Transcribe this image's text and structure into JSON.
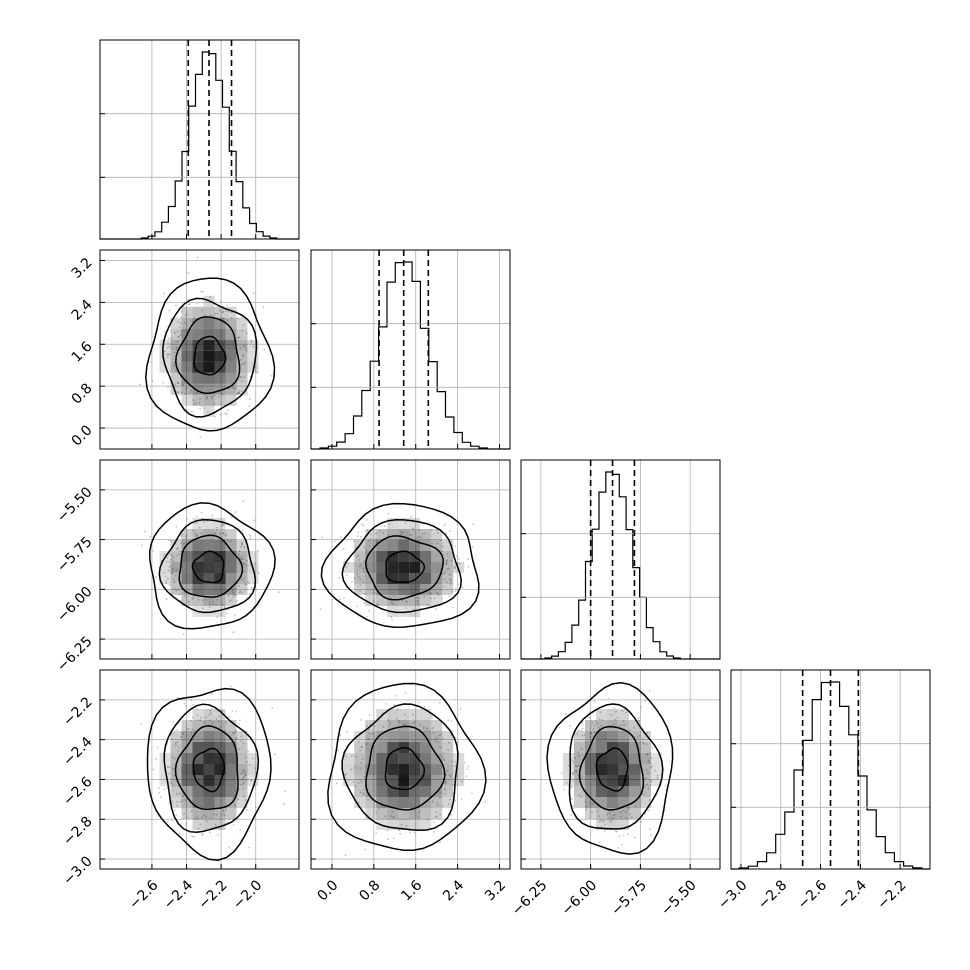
{
  "chart_data": {
    "type": "corner",
    "grid": true,
    "colors": {
      "contour": "#000000",
      "points": "#7f7f7f",
      "density": "#000000",
      "grid": "#b0b0b0"
    },
    "parameters": [
      {
        "id": "p1",
        "center": -2.27,
        "sigma": 0.115,
        "range": [
          -2.9,
          -1.75
        ],
        "ticks": [
          -2.6,
          -2.4,
          -2.2,
          -2.0
        ],
        "tick_labels": [
          "−2.6",
          "−2.4",
          "−2.2",
          "−2.0"
        ],
        "quantiles": [
          -2.39,
          -2.27,
          -2.14
        ]
      },
      {
        "id": "p2",
        "center": 1.37,
        "sigma": 0.47,
        "range": [
          -0.4,
          3.4
        ],
        "ticks": [
          0.0,
          0.8,
          1.6,
          2.4,
          3.2
        ],
        "tick_labels": [
          "0.0",
          "0.8",
          "1.6",
          "2.4",
          "3.2"
        ],
        "quantiles": [
          0.9,
          1.37,
          1.84
        ]
      },
      {
        "id": "p3",
        "center": -5.89,
        "sigma": 0.1,
        "range": [
          -6.35,
          -5.35
        ],
        "ticks": [
          -6.25,
          -6.0,
          -5.75,
          -5.5
        ],
        "tick_labels": [
          "−6.25",
          "−6.00",
          "−5.75",
          "−5.50"
        ],
        "quantiles": [
          -6.0,
          -5.89,
          -5.78
        ]
      },
      {
        "id": "p4",
        "center": -2.55,
        "sigma": 0.135,
        "range": [
          -3.05,
          -2.05
        ],
        "ticks": [
          -3.0,
          -2.8,
          -2.6,
          -2.4,
          -2.2
        ],
        "tick_labels": [
          "−3.0",
          "−2.8",
          "−2.6",
          "−2.4",
          "−2.2"
        ],
        "quantiles": [
          -2.69,
          -2.55,
          -2.41
        ]
      }
    ],
    "hist_bins": 20,
    "contour_levels_sigma": [
      0.5,
      1.0,
      1.5,
      2.0
    ]
  }
}
